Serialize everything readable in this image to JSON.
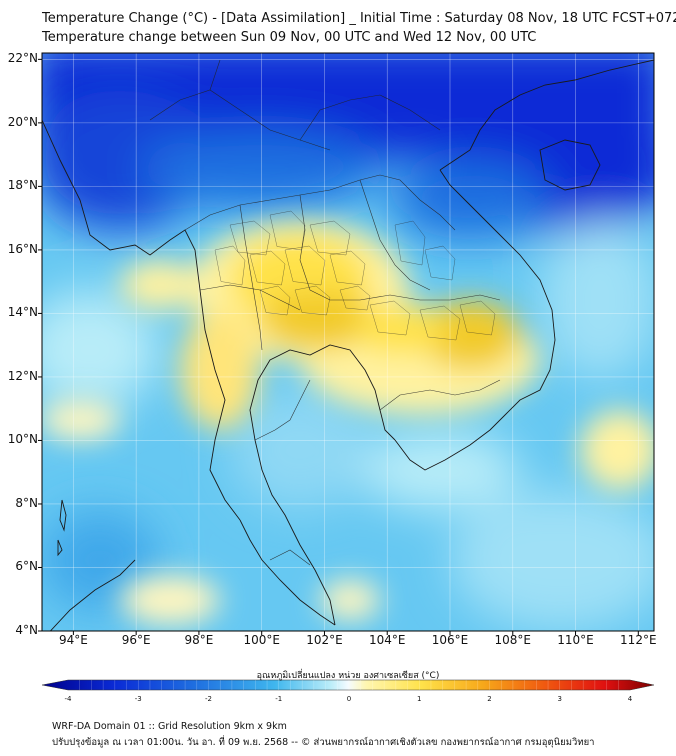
{
  "header": {
    "title_line1": "Temperature Change (°C) - [Data Assimilation] _ Initial Time : Saturday 08 Nov, 18 UTC FCST+072",
    "title_line2": "Temperature change between Sun 09 Nov, 00 UTC and Wed 12 Nov, 00 UTC"
  },
  "map": {
    "lat_labels": [
      "22°N",
      "20°N",
      "18°N",
      "16°N",
      "14°N",
      "12°N",
      "10°N",
      "8°N",
      "6°N",
      "4°N"
    ],
    "lat_values": [
      22,
      20,
      18,
      16,
      14,
      12,
      10,
      8,
      6,
      4
    ],
    "lon_labels": [
      "94°E",
      "96°E",
      "98°E",
      "100°E",
      "102°E",
      "104°E",
      "106°E",
      "108°E",
      "110°E",
      "112°E"
    ],
    "lon_values": [
      94,
      96,
      98,
      100,
      102,
      104,
      106,
      108,
      110,
      112
    ],
    "lon_range": [
      93.0,
      112.5
    ],
    "lat_range": [
      4.0,
      22.2
    ]
  },
  "colorbar": {
    "title": "อุณหภูมิเปลี่ยนแปลง หน่วย องศาเซลเซียส (°C)",
    "ticks": [
      "-4",
      "-3",
      "-2",
      "-1",
      "0",
      "1",
      "2",
      "3",
      "4"
    ],
    "tick_values": [
      -4,
      -3,
      -2,
      -1,
      0,
      1,
      2,
      3,
      4
    ],
    "range": [
      -4,
      4
    ]
  },
  "footer": {
    "line1": "WRF-DA Domain 01 :: Grid Resolution 9km x 9km",
    "line2": "ปรับปรุงข้อมูล ณ เวลา 01:00น. วัน อา. ที่ 09 พ.ย. 2568 -- © ส่วนพยากรณ์อากาศเชิงตัวเลข กองพยากรณ์อากาศ กรมอุตุนิยมวิทยา"
  },
  "colors": {
    "deep_blue": "#0a2bd6",
    "blue": "#1f6fe0",
    "light_blue": "#66c8f2",
    "pale_cyan": "#b8ecf8",
    "pale_yellow": "#fff6b0",
    "yellow": "#ffe24a",
    "gold": "#f2cb2a",
    "coast": "#1a1a1a"
  }
}
